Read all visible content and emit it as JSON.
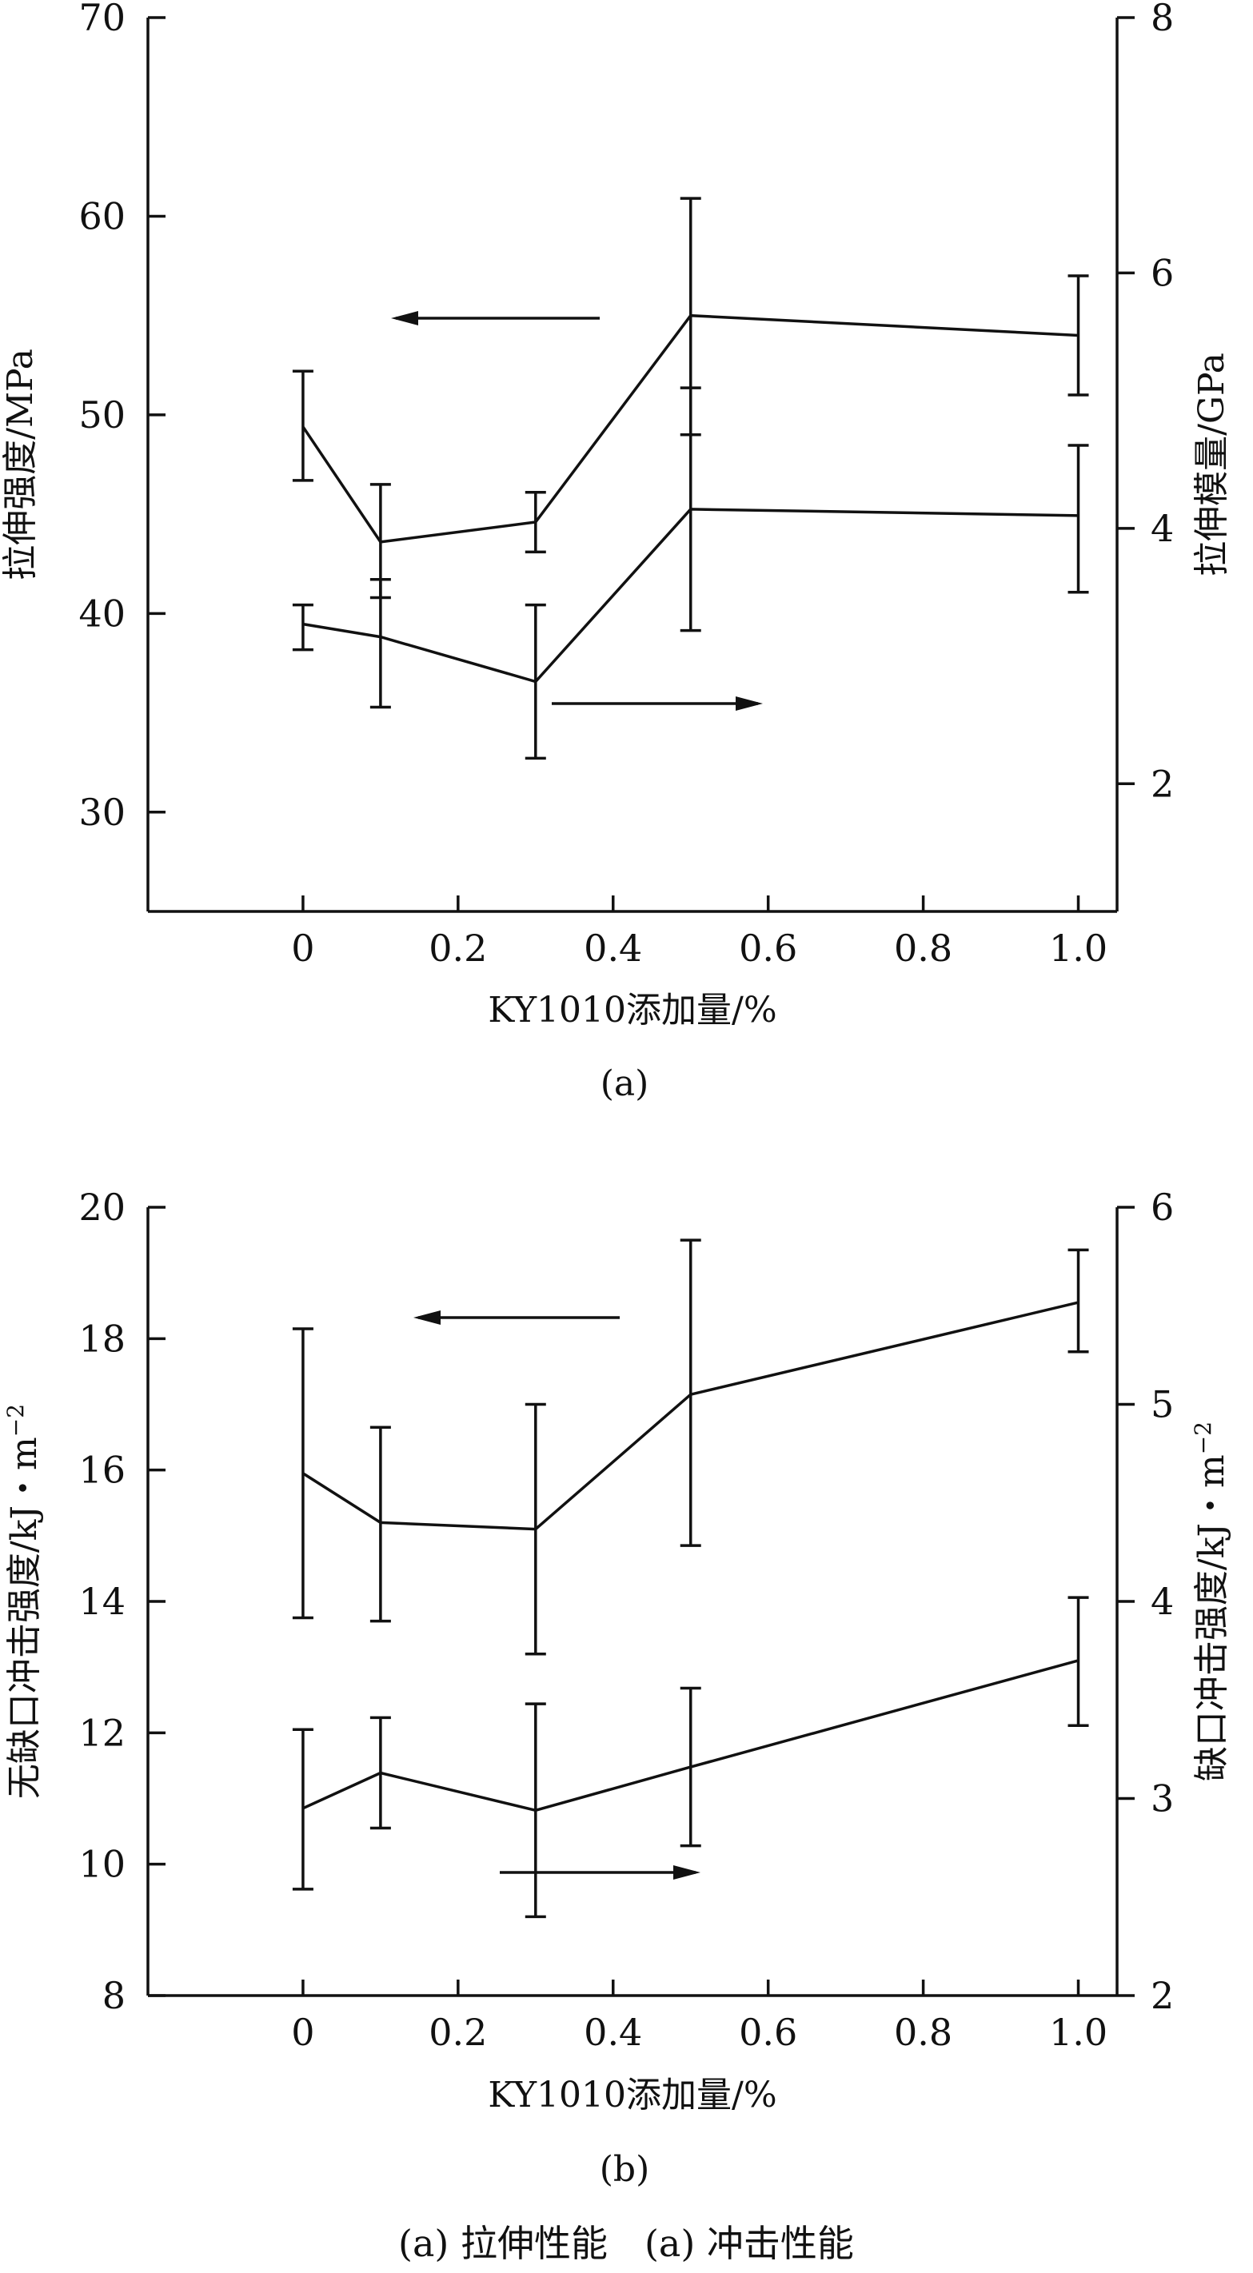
{
  "chart_data": [
    {
      "type": "line",
      "panel_label": "(a)",
      "xlabel": "KY1010添加量/%",
      "ylabel_left": "拉伸强度/MPa",
      "ylabel_right": "拉伸模量/GPa",
      "x_ticks": [
        "0",
        "0.2",
        "0.4",
        "0.6",
        "0.8",
        "1.0"
      ],
      "y_left_ticks": [
        "30",
        "40",
        "50",
        "60",
        "70"
      ],
      "y_right_ticks": [
        "2",
        "4",
        "6",
        "8"
      ],
      "xlim": [
        -0.2,
        1.05
      ],
      "ylim_left": [
        25,
        70
      ],
      "ylim_right": [
        1,
        8
      ],
      "grid": false,
      "series": [
        {
          "axis": "left",
          "x": [
            0,
            0.1,
            0.3,
            0.5,
            1.0
          ],
          "y": [
            49.4,
            43.6,
            44.6,
            55.0,
            54.0
          ],
          "err_low": [
            46.7,
            40.8,
            43.1,
            49.0,
            51.0
          ],
          "err_high": [
            52.2,
            46.5,
            46.1,
            60.9,
            57.0
          ],
          "arrow": "left"
        },
        {
          "axis": "right",
          "x": [
            0,
            0.1,
            0.3,
            0.5,
            1.0
          ],
          "y": [
            3.25,
            3.15,
            2.8,
            4.15,
            4.1
          ],
          "err_low": [
            3.05,
            2.6,
            2.2,
            3.2,
            3.5
          ],
          "err_high": [
            3.4,
            3.6,
            3.4,
            5.1,
            4.65
          ],
          "arrow": "right"
        }
      ]
    },
    {
      "type": "line",
      "panel_label": "(b)",
      "xlabel": "KY1010添加量/%",
      "ylabel_left": "无缺口冲击强度/kJ・m",
      "ylabel_left_sup": "−2",
      "ylabel_right": "缺口冲击强度/kJ・m",
      "ylabel_right_sup": "−2",
      "x_ticks": [
        "0",
        "0.2",
        "0.4",
        "0.6",
        "0.8",
        "1.0"
      ],
      "y_left_ticks": [
        "8",
        "10",
        "12",
        "14",
        "16",
        "18",
        "20"
      ],
      "y_right_ticks": [
        "2",
        "3",
        "4",
        "5",
        "6"
      ],
      "xlim": [
        -0.2,
        1.05
      ],
      "ylim_left": [
        8,
        20
      ],
      "ylim_right": [
        2,
        6
      ],
      "grid": false,
      "series": [
        {
          "axis": "left",
          "x": [
            0,
            0.1,
            0.3,
            0.5,
            1.0
          ],
          "y": [
            15.95,
            15.2,
            15.1,
            17.15,
            18.55
          ],
          "err_low": [
            13.75,
            13.7,
            13.2,
            14.85,
            17.8
          ],
          "err_high": [
            18.15,
            16.65,
            17.0,
            19.5,
            19.35
          ],
          "arrow": "left"
        },
        {
          "axis": "right",
          "x": [
            0,
            0.1,
            0.3,
            0.5,
            1.0
          ],
          "y": [
            2.95,
            3.13,
            2.94,
            3.16,
            3.7
          ],
          "err_low": [
            2.54,
            2.85,
            2.4,
            2.76,
            3.37
          ],
          "err_high": [
            3.35,
            3.41,
            3.48,
            3.56,
            4.02
          ],
          "arrow": "right"
        }
      ]
    }
  ],
  "caption": "(a) 拉伸性能　(a) 冲击性能"
}
